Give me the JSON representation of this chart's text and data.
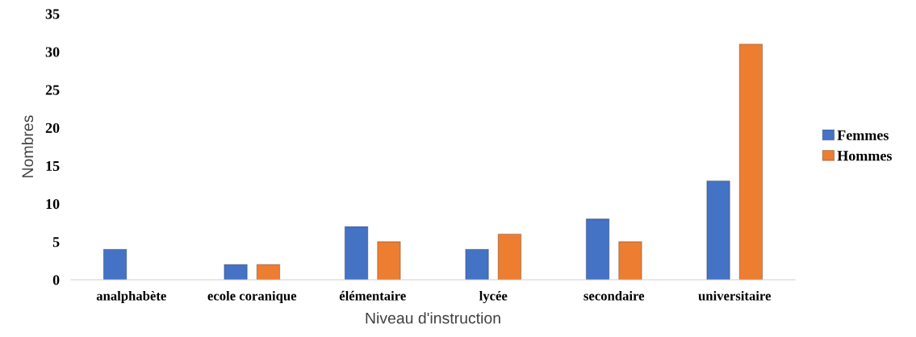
{
  "chart_data": {
    "type": "bar",
    "xlabel": "Niveau d'instruction",
    "ylabel": "Nombres",
    "categories": [
      "analphabète",
      "ecole coranique",
      "élémentaire",
      "lycée",
      "secondaire",
      "universitaire"
    ],
    "series": [
      {
        "name": "Femmes",
        "color": "#4472c4",
        "values": [
          4,
          2,
          7,
          4,
          8,
          13
        ]
      },
      {
        "name": "Hommes",
        "color": "#ed7d31",
        "values": [
          null,
          2,
          5,
          6,
          5,
          31
        ]
      }
    ],
    "ylim": [
      0,
      35
    ],
    "yticks": [
      0,
      5,
      10,
      15,
      20,
      25,
      30,
      35
    ],
    "grid": false,
    "legend": "right"
  }
}
